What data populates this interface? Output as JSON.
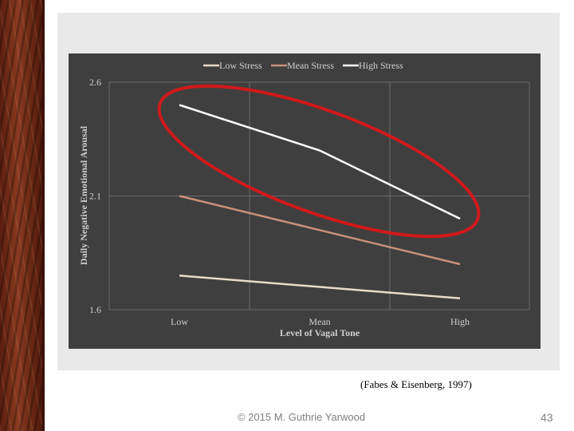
{
  "slide": {
    "citation": "(Fabes & Eisenberg, 1997)",
    "footer": "© 2015 M. Guthrie Yarwood",
    "page_number": "43"
  },
  "colors": {
    "chart_background": "#3f3f3f",
    "grid": "#6a6a6a",
    "axis_text": "#cfcfcf",
    "highlight_ellipse": "#d0191b"
  },
  "chart_data": {
    "type": "line",
    "title": "",
    "xlabel": "Level of Vagal Tone",
    "ylabel": "Daily Negative Emotional Arousal",
    "categories": [
      "Low",
      "Mean",
      "High"
    ],
    "ylim": [
      1.6,
      2.6
    ],
    "yticks": [
      "1.6",
      "2.1",
      "2.6"
    ],
    "legend_position": "top",
    "grid": true,
    "series": [
      {
        "name": "Low Stress",
        "color": "#e8dcc8",
        "values": [
          1.75,
          1.7,
          1.65
        ]
      },
      {
        "name": "Mean Stress",
        "color": "#c9907a",
        "values": [
          2.1,
          1.95,
          1.8
        ]
      },
      {
        "name": "High Stress",
        "color": "#ffffff",
        "values": [
          2.5,
          2.3,
          2.0
        ]
      }
    ],
    "annotation": {
      "shape": "ellipse",
      "label": "High Stress line highlighted"
    }
  }
}
